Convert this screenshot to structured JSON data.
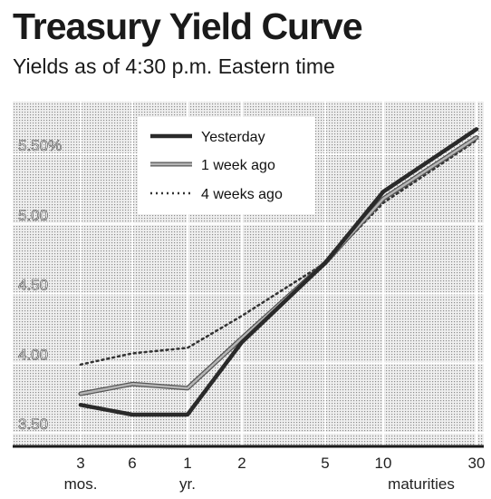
{
  "chart_data": {
    "type": "line",
    "title": "Treasury Yield Curve",
    "subtitle": "Yields as of 4:30 p.m. Eastern time",
    "x_ticks": [
      {
        "value": 3,
        "label": "3",
        "sublabel": "mos."
      },
      {
        "value": 6,
        "label": "6",
        "sublabel": ""
      },
      {
        "value": 12,
        "label": "1",
        "sublabel": "yr."
      },
      {
        "value": 24,
        "label": "2",
        "sublabel": ""
      },
      {
        "value": 60,
        "label": "5",
        "sublabel": ""
      },
      {
        "value": 120,
        "label": "10",
        "sublabel": "maturities"
      },
      {
        "value": 360,
        "label": "30",
        "sublabel": ""
      }
    ],
    "x_units": "months",
    "y_ticks": [
      {
        "value": 3.5,
        "label": "3.50"
      },
      {
        "value": 4.0,
        "label": "4.00"
      },
      {
        "value": 4.5,
        "label": "4.50"
      },
      {
        "value": 5.0,
        "label": "5.00"
      },
      {
        "value": 5.5,
        "label": "5.50%"
      }
    ],
    "ylim": [
      3.4,
      5.85
    ],
    "grid": true,
    "legend_position": "top-left",
    "series": [
      {
        "name": "Yesterday",
        "style": "solid-dark",
        "x": [
          3,
          6,
          12,
          24,
          60,
          120,
          360
        ],
        "values": [
          3.7,
          3.63,
          3.63,
          4.15,
          4.72,
          5.23,
          5.68
        ]
      },
      {
        "name": "1 week ago",
        "style": "solid-gray",
        "x": [
          3,
          6,
          12,
          24,
          60,
          120,
          360
        ],
        "values": [
          3.78,
          3.85,
          3.82,
          4.18,
          4.72,
          5.18,
          5.62
        ]
      },
      {
        "name": "4 weeks ago",
        "style": "dotted",
        "x": [
          3,
          6,
          12,
          24,
          60,
          120,
          360
        ],
        "values": [
          3.99,
          4.07,
          4.11,
          4.34,
          4.72,
          5.15,
          5.6
        ]
      }
    ]
  }
}
